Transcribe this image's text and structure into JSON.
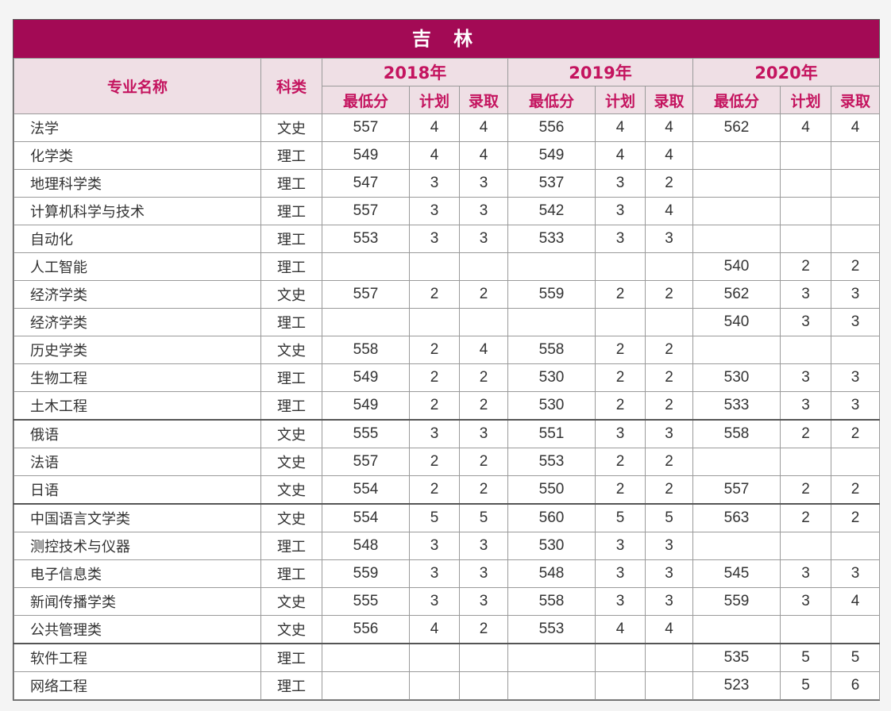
{
  "title": "吉 林",
  "headers": {
    "major": "专业名称",
    "category": "科类",
    "years": [
      "2018年",
      "2019年",
      "2020年"
    ],
    "sub": [
      "最低分",
      "计划",
      "录取"
    ]
  },
  "colors": {
    "title_bg": "#a30a55",
    "header_bg": "#efdfe5",
    "header_text": "#c4145f"
  },
  "rows": [
    [
      "法学",
      "文史",
      "557",
      "4",
      "4",
      "556",
      "4",
      "4",
      "562",
      "4",
      "4"
    ],
    [
      "化学类",
      "理工",
      "549",
      "4",
      "4",
      "549",
      "4",
      "4",
      "",
      "",
      ""
    ],
    [
      "地理科学类",
      "理工",
      "547",
      "3",
      "3",
      "537",
      "3",
      "2",
      "",
      "",
      ""
    ],
    [
      "计算机科学与技术",
      "理工",
      "557",
      "3",
      "3",
      "542",
      "3",
      "4",
      "",
      "",
      ""
    ],
    [
      "自动化",
      "理工",
      "553",
      "3",
      "3",
      "533",
      "3",
      "3",
      "",
      "",
      ""
    ],
    [
      "人工智能",
      "理工",
      "",
      "",
      "",
      "",
      "",
      "",
      "540",
      "2",
      "2"
    ],
    [
      "经济学类",
      "文史",
      "557",
      "2",
      "2",
      "559",
      "2",
      "2",
      "562",
      "3",
      "3"
    ],
    [
      "经济学类",
      "理工",
      "",
      "",
      "",
      "",
      "",
      "",
      "540",
      "3",
      "3"
    ],
    [
      "历史学类",
      "文史",
      "558",
      "2",
      "4",
      "558",
      "2",
      "2",
      "",
      "",
      ""
    ],
    [
      "生物工程",
      "理工",
      "549",
      "2",
      "2",
      "530",
      "2",
      "2",
      "530",
      "3",
      "3"
    ],
    [
      "土木工程",
      "理工",
      "549",
      "2",
      "2",
      "530",
      "2",
      "2",
      "533",
      "3",
      "3"
    ],
    [
      "俄语",
      "文史",
      "555",
      "3",
      "3",
      "551",
      "3",
      "3",
      "558",
      "2",
      "2"
    ],
    [
      "法语",
      "文史",
      "557",
      "2",
      "2",
      "553",
      "2",
      "2",
      "",
      "",
      ""
    ],
    [
      "日语",
      "文史",
      "554",
      "2",
      "2",
      "550",
      "2",
      "2",
      "557",
      "2",
      "2"
    ],
    [
      "中国语言文学类",
      "文史",
      "554",
      "5",
      "5",
      "560",
      "5",
      "5",
      "563",
      "2",
      "2"
    ],
    [
      "测控技术与仪器",
      "理工",
      "548",
      "3",
      "3",
      "530",
      "3",
      "3",
      "",
      "",
      ""
    ],
    [
      "电子信息类",
      "理工",
      "559",
      "3",
      "3",
      "548",
      "3",
      "3",
      "545",
      "3",
      "3"
    ],
    [
      "新闻传播学类",
      "文史",
      "555",
      "3",
      "3",
      "558",
      "3",
      "3",
      "559",
      "3",
      "4"
    ],
    [
      "公共管理类",
      "文史",
      "556",
      "4",
      "2",
      "553",
      "4",
      "4",
      "",
      "",
      ""
    ],
    [
      "软件工程",
      "理工",
      "",
      "",
      "",
      "",
      "",
      "",
      "535",
      "5",
      "5"
    ],
    [
      "网络工程",
      "理工",
      "",
      "",
      "",
      "",
      "",
      "",
      "523",
      "5",
      "6"
    ]
  ]
}
